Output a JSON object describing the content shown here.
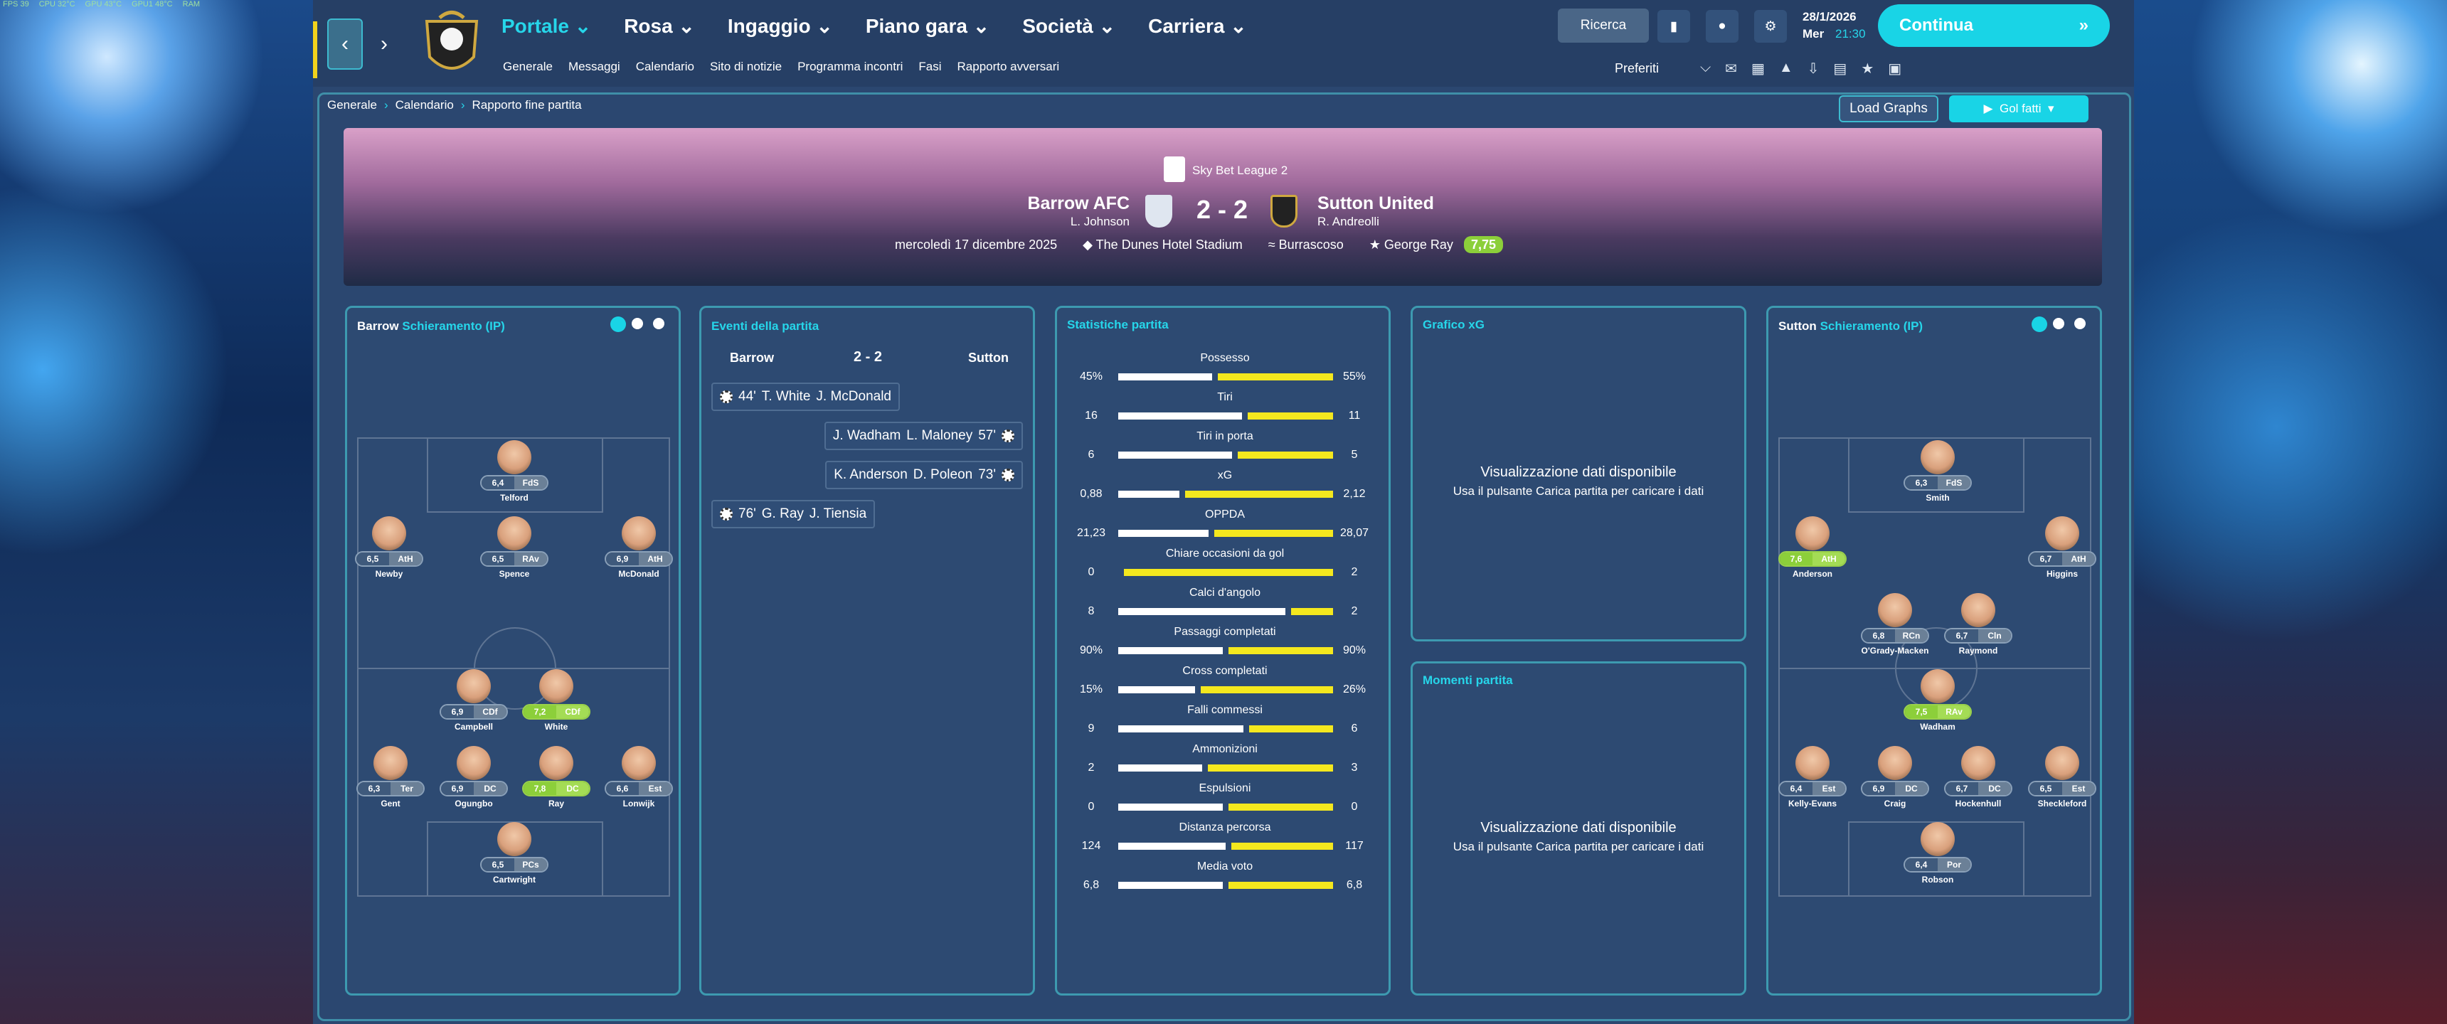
{
  "overlay": [
    "FPS 39",
    "CPU 32°C",
    "GPU 43°C",
    "GPU1 48°C",
    "RAM"
  ],
  "nav": {
    "items": [
      "Portale",
      "Rosa",
      "Ingaggio",
      "Piano gara",
      "Società",
      "Carriera"
    ],
    "subitems": [
      "Generale",
      "Messaggi",
      "Calendario",
      "Sito di notizie",
      "Programma incontri",
      "Fasi",
      "Rapporto avversari"
    ],
    "search": "Ricerca",
    "date": "28/1/2026",
    "day": "Mer",
    "time": "21:30",
    "continue": "Continua",
    "favorites": "Preferiti"
  },
  "breadcrumb": [
    "Generale",
    "Calendario",
    "Rapporto fine partita"
  ],
  "buttons": {
    "load_graphs": "Load Graphs",
    "goals": "Gol fatti"
  },
  "match": {
    "competition": "Sky Bet League 2",
    "home": "Barrow AFC",
    "home_manager": "L. Johnson",
    "score": "2 - 2",
    "away": "Sutton United",
    "away_manager": "R. Andreolli",
    "date": "mercoledì 17 dicembre 2025",
    "stadium": "The Dunes Hotel Stadium",
    "weather": "Burrascoso",
    "motm": "George Ray",
    "motm_rating": "7,75"
  },
  "home_lineup": {
    "team": "Barrow",
    "title": "Schieramento (IP)",
    "players": [
      {
        "name": "Telford",
        "rating": "6,4",
        "pos": "FdS",
        "highlight": false
      },
      {
        "name": "Newby",
        "rating": "6,5",
        "pos": "AtH",
        "highlight": false
      },
      {
        "name": "Spence",
        "rating": "6,5",
        "pos": "RAv",
        "highlight": false
      },
      {
        "name": "McDonald",
        "rating": "6,9",
        "pos": "AtH",
        "highlight": false
      },
      {
        "name": "Campbell",
        "rating": "6,9",
        "pos": "CDf",
        "highlight": false
      },
      {
        "name": "White",
        "rating": "7,2",
        "pos": "CDf",
        "highlight": true
      },
      {
        "name": "Gent",
        "rating": "6,3",
        "pos": "Ter",
        "highlight": false
      },
      {
        "name": "Ogungbo",
        "rating": "6,9",
        "pos": "DC",
        "highlight": false
      },
      {
        "name": "Ray",
        "rating": "7,8",
        "pos": "DC",
        "highlight": true
      },
      {
        "name": "Lonwijk",
        "rating": "6,6",
        "pos": "Est",
        "highlight": false
      },
      {
        "name": "Cartwright",
        "rating": "6,5",
        "pos": "PCs",
        "highlight": false
      }
    ]
  },
  "away_lineup": {
    "team": "Sutton",
    "title": "Schieramento (IP)",
    "players": [
      {
        "name": "Smith",
        "rating": "6,3",
        "pos": "FdS",
        "highlight": false
      },
      {
        "name": "Anderson",
        "rating": "7,6",
        "pos": "AtH",
        "highlight": true
      },
      {
        "name": "Higgins",
        "rating": "6,7",
        "pos": "AtH",
        "highlight": false
      },
      {
        "name": "O'Grady-Macken",
        "rating": "6,8",
        "pos": "RCn",
        "highlight": false
      },
      {
        "name": "Raymond",
        "rating": "6,7",
        "pos": "Cln",
        "highlight": false
      },
      {
        "name": "Wadham",
        "rating": "7,5",
        "pos": "RAv",
        "highlight": true
      },
      {
        "name": "Kelly-Evans",
        "rating": "6,4",
        "pos": "Est",
        "highlight": false
      },
      {
        "name": "Craig",
        "rating": "6,9",
        "pos": "DC",
        "highlight": false
      },
      {
        "name": "Hockenhull",
        "rating": "6,7",
        "pos": "DC",
        "highlight": false
      },
      {
        "name": "Sheckleford",
        "rating": "6,5",
        "pos": "Est",
        "highlight": false
      },
      {
        "name": "Robson",
        "rating": "6,4",
        "pos": "Por",
        "highlight": false
      }
    ]
  },
  "events": {
    "title": "Eventi della partita",
    "home": "Barrow",
    "score": "2 - 2",
    "away": "Sutton",
    "items": [
      {
        "side": "home",
        "minute": "44'",
        "scorer": "T. White",
        "assist": "J. McDonald"
      },
      {
        "side": "away",
        "minute": "57'",
        "scorer": "J. Wadham",
        "assist": "L. Maloney"
      },
      {
        "side": "away",
        "minute": "73'",
        "scorer": "K. Anderson",
        "assist": "D. Poleon"
      },
      {
        "side": "home",
        "minute": "76'",
        "scorer": "G. Ray",
        "assist": "J. Tiensia"
      }
    ]
  },
  "stats": {
    "title": "Statistiche partita",
    "rows": [
      {
        "name": "Possesso",
        "home": {
          "value": 45,
          "label": "45%"
        },
        "away": {
          "value": 55,
          "label": "55%"
        }
      },
      {
        "name": "Tiri",
        "home": 16,
        "away": 11
      },
      {
        "name": "Tiri in porta",
        "home": 6,
        "away": 5
      },
      {
        "name": "xG",
        "home": {
          "value": 0.88,
          "label": "0,88"
        },
        "away": {
          "value": 2.12,
          "label": "2,12"
        }
      },
      {
        "name": "OPPDA",
        "home": {
          "value": 21.23,
          "label": "21,23"
        },
        "away": {
          "value": 28.07,
          "label": "28,07"
        }
      },
      {
        "name": "Chiare occasioni da gol",
        "home": 0,
        "away": 2
      },
      {
        "name": "Calci d'angolo",
        "home": 8,
        "away": 2
      },
      {
        "name": "Passaggi completati",
        "home": {
          "value": 90,
          "label": "90%"
        },
        "away": {
          "value": 90,
          "label": "90%"
        }
      },
      {
        "name": "Cross completati",
        "home": {
          "value": 15,
          "label": "15%"
        },
        "away": {
          "value": 26,
          "label": "26%"
        }
      },
      {
        "name": "Falli commessi",
        "home": 9,
        "away": 6
      },
      {
        "name": "Ammonizioni",
        "home": 2,
        "away": 3
      },
      {
        "name": "Espulsioni",
        "home": 0,
        "away": 0
      },
      {
        "name": "Distanza percorsa",
        "home": 124,
        "away": 117
      },
      {
        "name": "Media voto",
        "home": {
          "value": 6.8,
          "label": "6,8"
        },
        "away": {
          "value": 6.8,
          "label": "6,8"
        }
      }
    ]
  },
  "xg_panel": {
    "title": "Grafico xG",
    "message": "Visualizzazione dati disponibile",
    "hint": "Usa il pulsante Carica partita per caricare i dati"
  },
  "moments_panel": {
    "title": "Momenti partita",
    "message": "Visualizzazione dati disponibile",
    "hint": "Usa il pulsante Carica partita per caricare i dati"
  }
}
